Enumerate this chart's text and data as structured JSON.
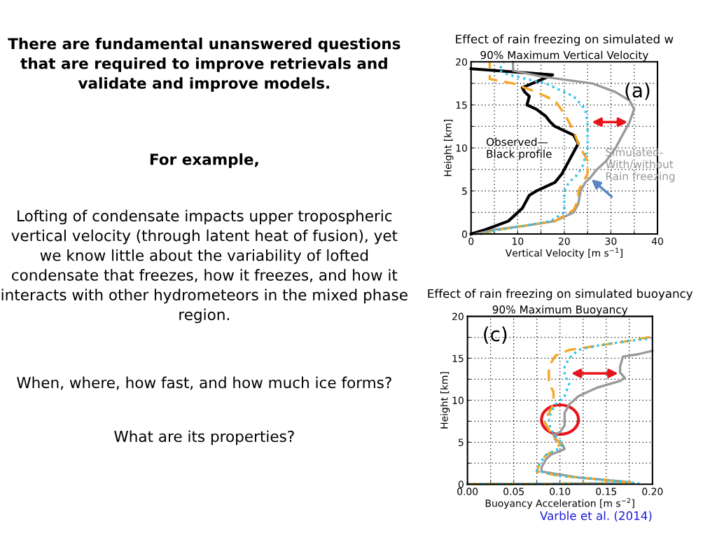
{
  "chart_data": [
    {
      "type": "other",
      "title": "There are fundamental unanswered questions that are required to improve retrievals and validate and improve models.",
      "annotations": [
        "For example,",
        "Lofting of condensate impacts upper tropospheric vertical velocity (through latent heat of fusion), yet we know little about the variability of lofted condensate that freezes, how it freezes, and how it interacts with other hydrometeors in the mixed phase region.",
        "When, where, how fast, and how much ice forms?",
        "What are its properties?"
      ]
    },
    {
      "type": "line",
      "title": "Effect of rain freezing on simulated w",
      "subtitle": "90% Maximum Vertical Velocity",
      "xlabel": "Vertical Velocity [m s$^{−1}$]",
      "ylabel": "Height [km]",
      "xlim": [
        0,
        40
      ],
      "xticks": [
        0,
        {
          "value": 5,
          "label": null
        },
        10,
        {
          "value": 15,
          "label": null
        },
        20,
        {
          "value": 25,
          "label": null
        },
        30,
        {
          "value": 35,
          "label": null
        },
        40
      ],
      "ylim": [
        0,
        20
      ],
      "yticks": [
        0,
        {
          "value": 2.5,
          "label": null
        },
        5,
        {
          "value": 7.5,
          "label": null
        },
        10,
        {
          "value": 12.5,
          "label": null
        },
        15,
        {
          "value": 17.5,
          "label": null
        },
        20
      ],
      "grid": true,
      "legend": false,
      "annotations": [
        {
          "text": "(a)"
        },
        {
          "text": "Observed—\nBlack profile"
        },
        {
          "text": "Simulated-\nWith/without\nRain freezing"
        }
      ],
      "series": [
        {
          "color": "#000000",
          "line_style": "solid",
          "x": [
            0,
            3,
            8,
            10,
            11,
            12.5,
            14,
            18,
            19.5,
            21,
            22,
            23,
            22,
            20,
            18,
            17,
            16,
            14,
            12,
            12.5,
            11.5,
            11,
            17.5,
            0
          ],
          "values": [
            0,
            0.5,
            1.5,
            2.5,
            3,
            4.5,
            5,
            6,
            7,
            8.5,
            9.5,
            10.5,
            11.5,
            12,
            12.5,
            13,
            13.7,
            14.5,
            15,
            16,
            16.5,
            17,
            18.5,
            19.2
          ]
        },
        {
          "color": "#999999",
          "line_style": "solid",
          "x": [
            1,
            5,
            12,
            18,
            22,
            23,
            23.5,
            24.5,
            25.5,
            27,
            29,
            31,
            32,
            33.5,
            34,
            35,
            34,
            31,
            26,
            15,
            9,
            9,
            9
          ],
          "values": [
            0,
            0.5,
            1,
            1.5,
            2.5,
            3.5,
            5,
            6,
            6.5,
            7.5,
            8.5,
            10,
            11,
            12.5,
            13,
            14.5,
            15.5,
            16.5,
            17.5,
            18.3,
            19,
            19.5,
            20
          ]
        },
        {
          "color": "#f5a623",
          "line_style": "dashed",
          "x": [
            2,
            6,
            12,
            18,
            22,
            23,
            23,
            24,
            25,
            25,
            24,
            23,
            22,
            20,
            18,
            14,
            9,
            4,
            4,
            4
          ],
          "values": [
            0,
            0.5,
            1,
            1.5,
            2.8,
            4,
            5,
            6,
            7,
            8.5,
            9.5,
            10.5,
            12,
            14,
            15.5,
            16.5,
            17.5,
            18,
            19,
            20
          ]
        },
        {
          "color": "#33c3ee",
          "line_style": "dotted",
          "x": [
            2,
            6,
            12,
            17,
            20,
            20,
            20,
            21,
            23,
            24,
            25,
            25,
            25,
            24.5,
            22,
            16,
            8,
            6,
            7
          ],
          "values": [
            0,
            0.5,
            1,
            1.5,
            2.5,
            4,
            5,
            6,
            7,
            8,
            10,
            12,
            13,
            14.5,
            16,
            17.5,
            18.5,
            19,
            20
          ]
        }
      ]
    },
    {
      "type": "line",
      "title": "Effect of rain freezing on simulated buoyancy",
      "subtitle": "90% Maximum Buoyancy",
      "xlabel": "Buoyancy Acceleration [m s$^{−2}$]",
      "ylabel": "Height [km]",
      "xlim": [
        0,
        0.2
      ],
      "xticks": [
        {
          "value": 0,
          "label": "0.00"
        },
        {
          "value": 0.025,
          "label": null
        },
        {
          "value": 0.05,
          "label": "0.05"
        },
        {
          "value": 0.075,
          "label": null
        },
        {
          "value": 0.1,
          "label": "0.10"
        },
        {
          "value": 0.125,
          "label": null
        },
        {
          "value": 0.15,
          "label": "0.15"
        },
        {
          "value": 0.175,
          "label": null
        },
        {
          "value": 0.2,
          "label": "0.20"
        }
      ],
      "ylim": [
        0,
        20
      ],
      "yticks": [
        0,
        {
          "value": 2.5,
          "label": null
        },
        5,
        {
          "value": 7.5,
          "label": null
        },
        10,
        {
          "value": 12.5,
          "label": null
        },
        15,
        {
          "value": 17.5,
          "label": null
        },
        20
      ],
      "grid": true,
      "legend": false,
      "annotations": [
        {
          "text": "(c)"
        },
        "Varble et al. (2014)"
      ],
      "series": [
        {
          "color": "#999999",
          "line_style": "solid",
          "x": [
            0,
            0.18,
            0.17,
            0.12,
            0.08,
            0.08,
            0.085,
            0.09,
            0.105,
            0.103,
            0.095,
            0.093,
            0.1,
            0.105,
            0.105,
            0.11,
            0.12,
            0.14,
            0.165,
            0.17,
            0.165,
            0.165,
            0.168,
            0.185,
            0.2
          ],
          "values": [
            0,
            0.1,
            0.3,
            0.8,
            1.5,
            2,
            3,
            3.5,
            4.2,
            4.7,
            5.3,
            5.9,
            6.2,
            7,
            8.5,
            9.5,
            10.5,
            11.5,
            12.3,
            12.7,
            13.3,
            14,
            15.2,
            15.5,
            15.9
          ]
        },
        {
          "color": "#f5a623",
          "line_style": "dashed",
          "x": [
            0,
            0.18,
            0.15,
            0.1,
            0.075,
            0.078,
            0.085,
            0.095,
            0.1,
            0.095,
            0.088,
            0.083,
            0.088,
            0.093,
            0.093,
            0.088,
            0.088,
            0.095,
            0.11,
            0.14,
            0.17,
            0.2
          ],
          "values": [
            0,
            0.1,
            0.5,
            1,
            1.5,
            2.5,
            3.5,
            4,
            4.8,
            5.5,
            6.5,
            7.5,
            8.5,
            9.5,
            11,
            12,
            14,
            15.3,
            16,
            16.5,
            17,
            17.6
          ]
        },
        {
          "color": "#33c3ee",
          "line_style": "dotted",
          "x": [
            0,
            0.185,
            0.15,
            0.1,
            0.075,
            0.078,
            0.085,
            0.1,
            0.103,
            0.097,
            0.09,
            0.088,
            0.09,
            0.095,
            0.105,
            0.11,
            0.105,
            0.105,
            0.11,
            0.12,
            0.14,
            0.17,
            0.2
          ],
          "values": [
            0,
            0.1,
            0.5,
            1,
            1.6,
            2.5,
            3.5,
            4.3,
            4.8,
            5.5,
            6.5,
            7.5,
            8.5,
            9.5,
            10.5,
            12,
            13,
            14,
            15,
            16,
            16.5,
            17,
            17.4
          ]
        }
      ]
    }
  ]
}
